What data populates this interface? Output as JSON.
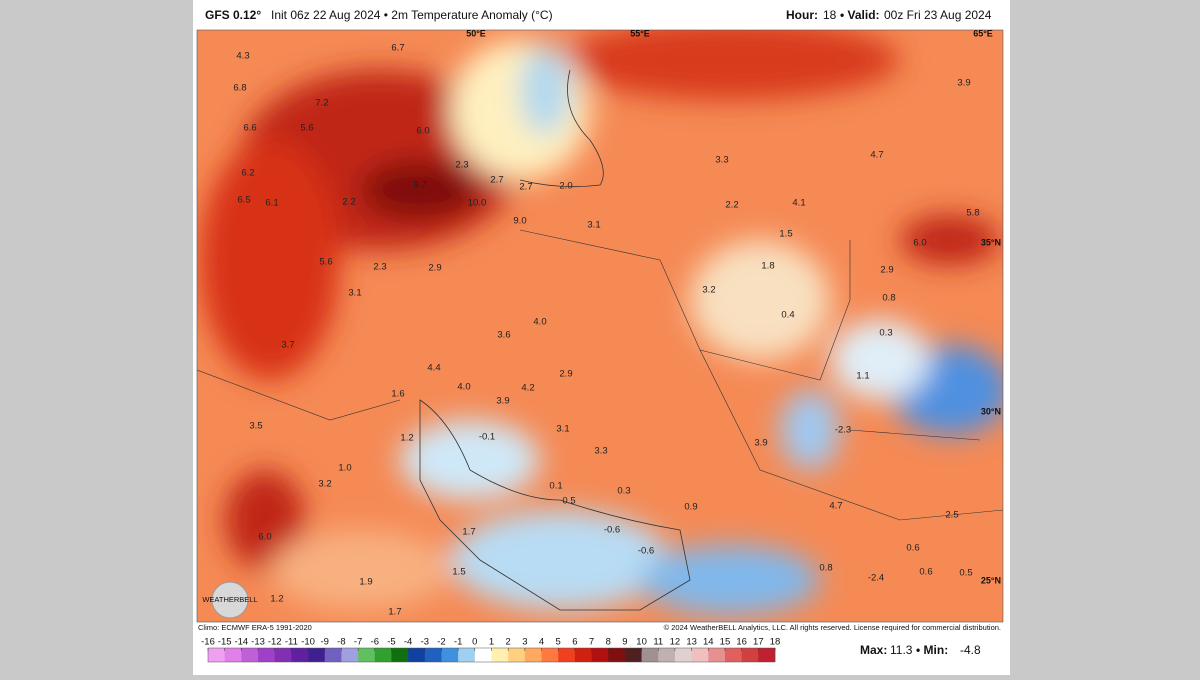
{
  "header": {
    "model": "GFS 0.12°",
    "title": "Init 06z 22 Aug 2024 • 2m Temperature Anomaly (°C)",
    "hour_label": "Hour:",
    "hour": "18",
    "valid_label": "• Valid:",
    "valid": "00z Fri 23 Aug 2024"
  },
  "map": {
    "labels": [
      "6.7",
      "4.3",
      "6.8",
      "7.2",
      "5.6",
      "6.6",
      "6.0",
      "6.2",
      "9.7",
      "6.5",
      "6.1",
      "2.2",
      "10.0",
      "9.0",
      "2.3",
      "2.7",
      "2.7",
      "2.0",
      "3.1",
      "5.6",
      "2.3",
      "2.9",
      "3.1",
      "3.6",
      "4.0",
      "4.4",
      "4.0",
      "4.2",
      "3.9",
      "2.9",
      "3.7",
      "3.5",
      "1.0",
      "3.2",
      "6.0",
      "1.9",
      "1.2",
      "1.7",
      "1.5",
      "1.7",
      "3.1",
      "3.3",
      "0.3",
      "0.1",
      "0.5",
      "-0.1",
      "1.6",
      "1.2",
      "-0.6",
      "-0.6",
      "0.9",
      "3.9",
      "3.2",
      "1.8",
      "1.5",
      "0.4",
      "2.2",
      "3.3",
      "4.1",
      "3.9",
      "4.7",
      "5.8",
      "6.0",
      "2.9",
      "0.8",
      "0.3",
      "1.1",
      "-2.3",
      "4.7",
      "2.5",
      "0.6",
      "0.5",
      "-2.4",
      "0.6",
      "0.8"
    ],
    "graticule": [
      "50°E",
      "55°E",
      "65°E",
      "35°N",
      "30°N",
      "25°N"
    ],
    "logo": "WEATHERBELL"
  },
  "footer": {
    "climo": "Climo: ECMWF ERA-5 1991-2020",
    "copyright": "© 2024 WeatherBELL Analytics, LLC. All rights reserved. License required for commercial distribution.",
    "max_label": "Max:",
    "max": "11.3",
    "min_label": "• Min:",
    "min": "-4.8"
  },
  "colorbar": {
    "ticks": [
      -16,
      -15,
      -14,
      -13,
      -12,
      -11,
      -10,
      -9,
      -8,
      -7,
      -6,
      -5,
      -4,
      -3,
      -2,
      -1,
      0,
      1,
      2,
      3,
      4,
      5,
      6,
      7,
      8,
      9,
      10,
      11,
      12,
      13,
      14,
      15,
      16,
      17,
      18
    ],
    "colors": [
      "#f0a0f0",
      "#e080e8",
      "#c060d8",
      "#a040c8",
      "#8030b0",
      "#6020a0",
      "#402090",
      "#7060c0",
      "#a0a0e0",
      "#60c060",
      "#30a030",
      "#107010",
      "#1040a0",
      "#2060c0",
      "#4090e0",
      "#a0d0f0",
      "#ffffff",
      "#fff0b0",
      "#ffd080",
      "#ffa860",
      "#ff7840",
      "#f04020",
      "#d02010",
      "#b01010",
      "#801010",
      "#502020",
      "#a09090",
      "#c0b0b0",
      "#e0d0d0",
      "#f0c0c0",
      "#e89090",
      "#e06060",
      "#d04040",
      "#c02030"
    ]
  }
}
